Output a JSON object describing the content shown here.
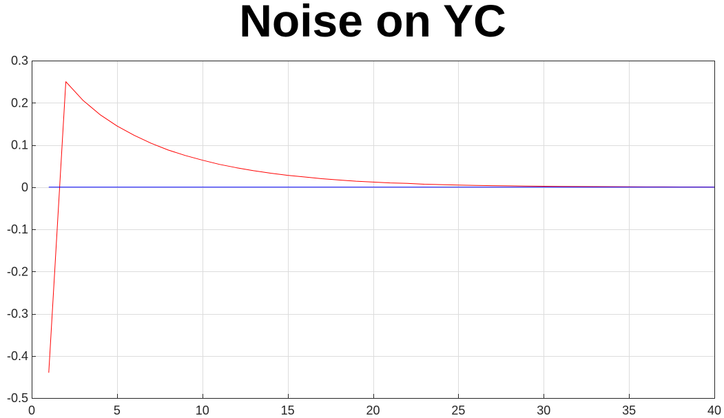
{
  "chart_data": {
    "type": "line",
    "title": "Noise on YC",
    "xlabel": "",
    "ylabel": "",
    "xlim": [
      0,
      40
    ],
    "ylim": [
      -0.5,
      0.3
    ],
    "xticks": [
      0,
      5,
      10,
      15,
      20,
      25,
      30,
      35,
      40
    ],
    "xtick_labels": [
      "0",
      "5",
      "10",
      "15",
      "20",
      "25",
      "30",
      "35",
      "40"
    ],
    "yticks": [
      -0.5,
      -0.4,
      -0.3,
      -0.2,
      -0.1,
      0,
      0.1,
      0.2,
      0.3
    ],
    "ytick_labels": [
      "-0.5",
      "-0.4",
      "-0.3",
      "-0.2",
      "-0.1",
      "0",
      "0.1",
      "0.2",
      "0.3"
    ],
    "grid": true,
    "legend": "none",
    "series": [
      {
        "color": "#ff0000",
        "x": [
          1,
          2,
          3,
          4,
          5,
          6,
          7,
          8,
          9,
          10,
          11,
          12,
          13,
          14,
          15,
          16,
          17,
          18,
          19,
          20,
          21,
          22,
          23,
          24,
          25,
          26,
          27,
          28,
          29,
          30,
          31,
          32,
          33,
          34,
          35,
          36,
          37,
          38,
          39,
          40
        ],
        "y": [
          -0.44,
          0.25,
          0.206,
          0.172,
          0.145,
          0.123,
          0.104,
          0.088,
          0.075,
          0.064,
          0.054,
          0.046,
          0.039,
          0.033,
          0.028,
          0.024,
          0.02,
          0.017,
          0.014,
          0.012,
          0.01,
          0.009,
          0.007,
          0.006,
          0.005,
          0.004,
          0.0035,
          0.003,
          0.0025,
          0.002,
          0.0017,
          0.0014,
          0.0012,
          0.001,
          0.0008,
          0.0007,
          0.0006,
          0.0005,
          0.0004,
          0.0003
        ]
      },
      {
        "color": "#0000ff",
        "x": [
          1,
          40
        ],
        "y": [
          0,
          0
        ]
      }
    ]
  }
}
